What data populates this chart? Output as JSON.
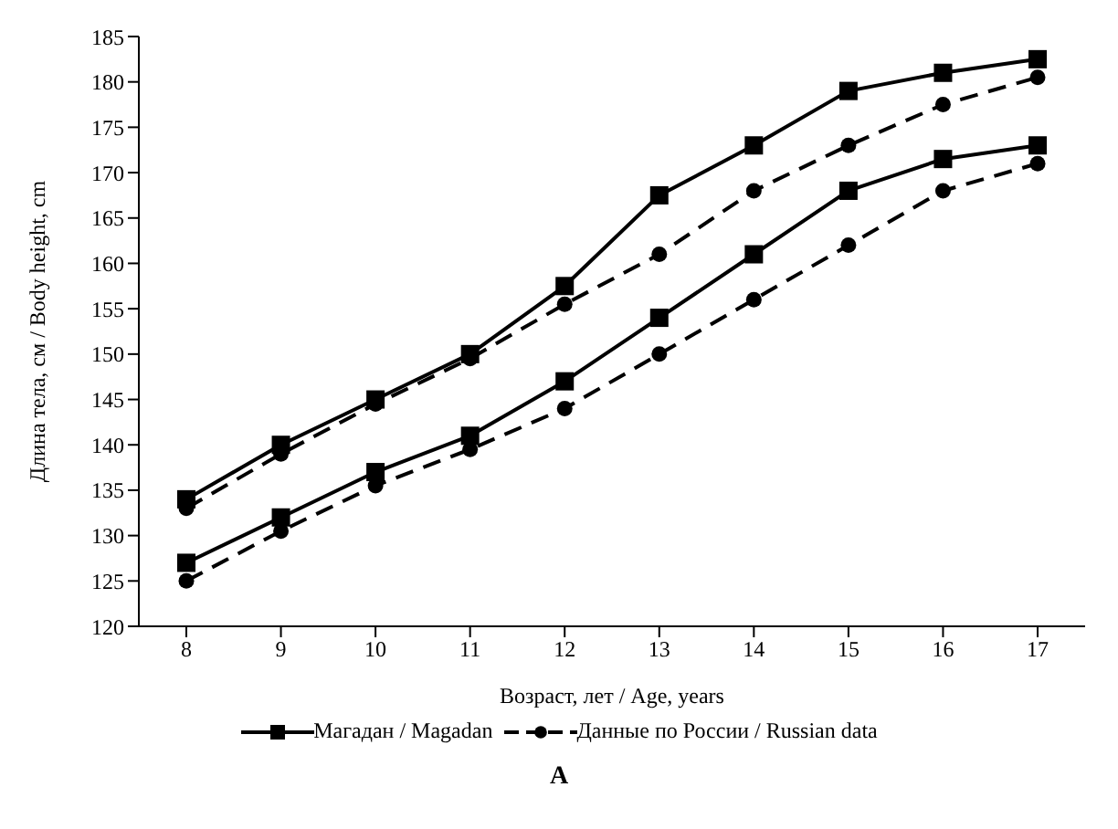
{
  "chart_data": {
    "type": "line",
    "xlabel": "Возраст, лет / Age, years",
    "ylabel": "Длина тела, см / Body height, cm",
    "categories": [
      "8",
      "9",
      "10",
      "11",
      "12",
      "13",
      "14",
      "15",
      "16",
      "17"
    ],
    "series": [
      {
        "name": "Магадан / Magadan",
        "color": "#000000",
        "marker": "square",
        "line_style": "solid",
        "values": [
          134,
          140,
          145,
          150,
          157.5,
          167.5,
          173,
          179,
          181,
          182.5
        ]
      },
      {
        "name": "Данные по России / Russian data",
        "color": "#000000",
        "marker": "circle",
        "line_style": "dashed",
        "values": [
          133,
          139,
          144.5,
          149.5,
          155.5,
          161,
          168,
          173,
          177.5,
          180.5
        ]
      },
      {
        "color": "#000000",
        "marker": "square",
        "line_style": "solid",
        "values": [
          127,
          132,
          137,
          141,
          147,
          154,
          161,
          168,
          171.5,
          173
        ]
      },
      {
        "color": "#000000",
        "marker": "circle",
        "line_style": "dashed",
        "values": [
          125,
          130.5,
          135.5,
          139.5,
          144,
          150,
          156,
          162,
          168,
          171
        ]
      }
    ],
    "ylim": [
      120,
      185
    ],
    "yticks": [
      120,
      125,
      130,
      135,
      140,
      145,
      150,
      155,
      160,
      165,
      170,
      175,
      180,
      185
    ],
    "grid": false,
    "legend": "bottom",
    "annotations": [
      "A"
    ]
  }
}
